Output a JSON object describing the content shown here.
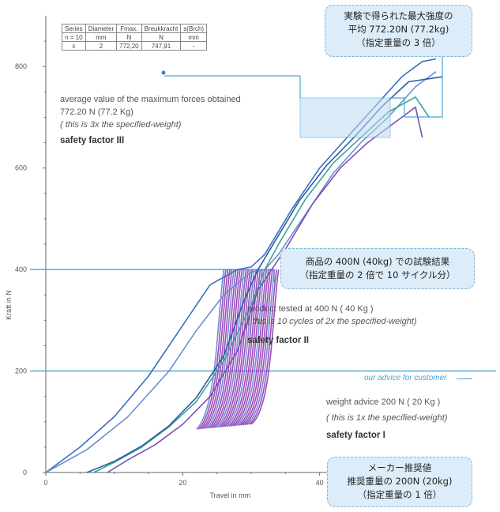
{
  "chart_data": {
    "type": "line",
    "xlabel": "Travel in mm",
    "ylabel": "Kraft in N",
    "xticks": [
      0,
      20,
      40
    ],
    "yticks": [
      0,
      200,
      400,
      600,
      800
    ],
    "xlim": [
      0,
      60
    ],
    "ylim": [
      0,
      900
    ],
    "grid": false,
    "reference_lines": [
      {
        "y": 400,
        "label": "product tested at 400 N ( 40 Kg )"
      },
      {
        "y": 200,
        "label": "our advice for customer"
      }
    ],
    "series": [
      {
        "color": "#3a6fc0",
        "x": [
          0,
          5,
          10,
          15,
          20,
          24,
          28,
          30,
          32,
          36,
          40,
          44,
          48,
          52,
          55,
          57
        ],
        "y": [
          0,
          50,
          110,
          190,
          290,
          370,
          400,
          405,
          430,
          520,
          600,
          660,
          720,
          780,
          810,
          815
        ]
      },
      {
        "color": "#6a8fd0",
        "x": [
          0,
          6,
          12,
          18,
          22,
          26,
          30,
          32,
          34,
          38,
          42,
          46,
          50,
          54,
          57
        ],
        "y": [
          0,
          45,
          110,
          200,
          280,
          350,
          395,
          400,
          430,
          510,
          590,
          650,
          700,
          760,
          790
        ]
      },
      {
        "color": "#3aa39a",
        "x": [
          7,
          10,
          14,
          18,
          22,
          26,
          30,
          32,
          34,
          38,
          42,
          46,
          50,
          54,
          56
        ],
        "y": [
          0,
          20,
          50,
          90,
          140,
          220,
          330,
          400,
          450,
          540,
          610,
          660,
          710,
          740,
          700
        ]
      },
      {
        "color": "#7a4fb0",
        "x": [
          9,
          12,
          16,
          20,
          24,
          28,
          31,
          33,
          35,
          39,
          43,
          47,
          51,
          54,
          55
        ],
        "y": [
          0,
          25,
          55,
          95,
          150,
          240,
          360,
          400,
          440,
          530,
          600,
          650,
          690,
          720,
          660
        ]
      },
      {
        "color": "#2a5aa8",
        "x": [
          6,
          10,
          14,
          18,
          22,
          26,
          29,
          31,
          33,
          37,
          41,
          45,
          49,
          53,
          58
        ],
        "y": [
          0,
          22,
          52,
          92,
          148,
          230,
          340,
          400,
          445,
          535,
          605,
          660,
          720,
          770,
          780
        ]
      }
    ],
    "hysteresis_band": {
      "color": "#8a2fb0",
      "description": "10 cycles at 400 N",
      "x_min": 22,
      "x_max": 34,
      "y_min": 85,
      "y_max": 400
    }
  },
  "params_table": {
    "header": [
      "Series",
      "Diameter",
      "Fmax.",
      "Breukkracht",
      "s(Brch)"
    ],
    "subheader": [
      "n = 10",
      "mm",
      "N",
      "N",
      "mm"
    ],
    "values": [
      "x",
      "2",
      "772,20",
      "747,91",
      "-"
    ]
  },
  "annotations": {
    "max": {
      "line1": "average value of the maximum forces obtained",
      "line2": "772.20 N    (77.2 Kg)",
      "line3": "( this is 3x the specified-weight)",
      "line4": "safety factor III"
    },
    "tested": {
      "line1": "product tested at   400 N   ( 40 Kg )",
      "line2": "( this is 10 cycles of 2x the specified-weight)",
      "line3": "safety factor  II"
    },
    "advice": {
      "label": "our advice for customer",
      "line1": "weight advice   200 N   (  20 Kg )",
      "line2": "( this is 1x the specified-weight)",
      "line3": "safety factor  I"
    }
  },
  "callouts": {
    "top": [
      "実験で得られた最大強度の",
      "平均 772.20N (77.2kg)",
      "（指定重量の 3 倍）"
    ],
    "middle": [
      "商品の 400N (40kg) での試験結果",
      "（指定重量の 2 倍で 10 サイクル分）"
    ],
    "bottom": [
      "メーカー推奨値",
      "推奨重量の 200N (20kg)",
      "（指定重量の 1 倍）"
    ]
  },
  "colors": {
    "accent_line": "#4aa3d6",
    "callout_fill": "#dcecf8",
    "callout_border": "#7fb6d8",
    "axis": "#666666"
  }
}
